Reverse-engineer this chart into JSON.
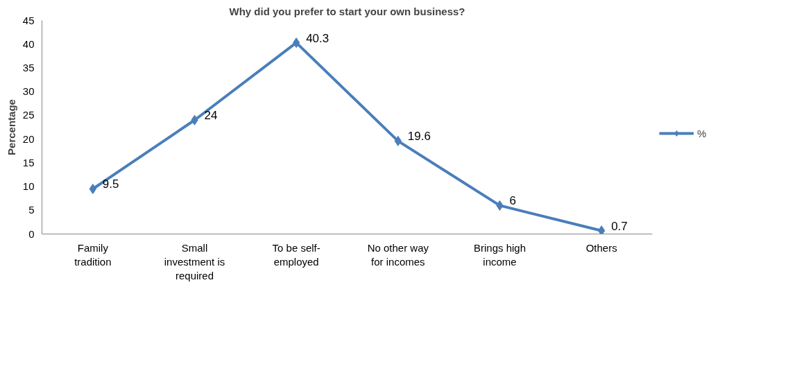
{
  "chart_data": {
    "type": "line",
    "title": "Why did you prefer to start your own business?",
    "ylabel": "Percentage",
    "categories": [
      "Family tradition",
      "Small investment is required",
      "To be self-employed",
      "No other way for incomes",
      "Brings high income",
      "Others"
    ],
    "series": [
      {
        "name": "%",
        "color": "#4a7ebb",
        "values": [
          9.5,
          24,
          40.3,
          19.6,
          6,
          0.7
        ]
      }
    ],
    "ylim": [
      0,
      45
    ],
    "yticks": [
      0,
      5,
      10,
      15,
      20,
      25,
      30,
      35,
      40,
      45
    ],
    "data_labels": true,
    "marker": "diamond",
    "line_style": "solid",
    "grid": false,
    "legend": "right"
  }
}
